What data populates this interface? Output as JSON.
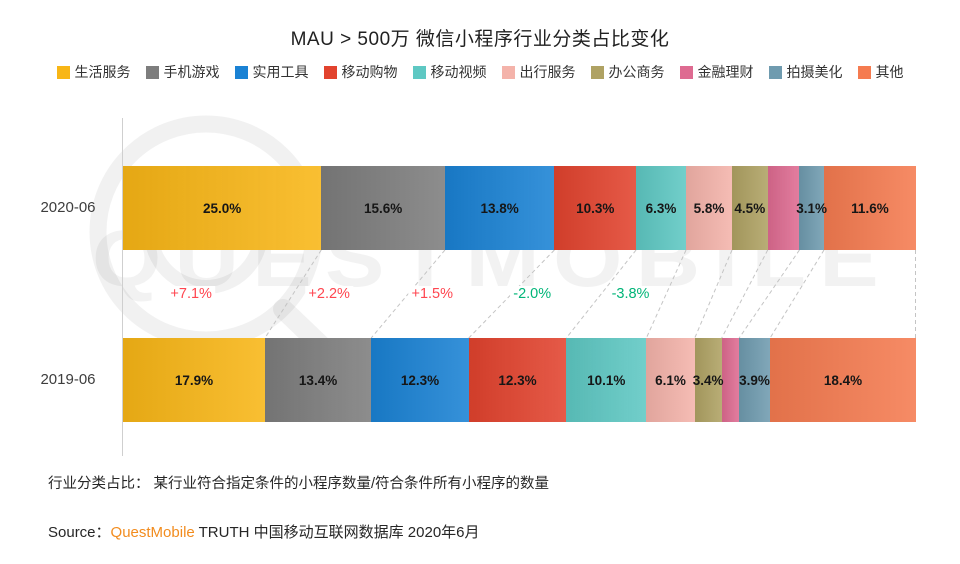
{
  "title": "MAU > 500万 微信小程序行业分类占比变化",
  "watermark": "QUESTMOBILE",
  "footnote": "行业分类占比： 某行业符合指定条件的小程序数量/符合条件所有小程序的数量",
  "source": {
    "prefix": "Source：",
    "brand": "QuestMobile",
    "rest": " TRUTH 中国移动互联网数据库 2020年6月"
  },
  "chart_data": {
    "type": "bar",
    "variant": "horizontal-stacked-100pct",
    "unit": "%",
    "xlim": [
      0,
      100
    ],
    "legend_position": "top",
    "categories": [
      "生活服务",
      "手机游戏",
      "实用工具",
      "移动购物",
      "移动视频",
      "出行服务",
      "办公商务",
      "金融理财",
      "拍摄美化",
      "其他"
    ],
    "colors": [
      "#F8B616",
      "#7D7D7D",
      "#1A82D4",
      "#E2432E",
      "#5EC8C3",
      "#F4B3AA",
      "#AFA263",
      "#DE6B91",
      "#6F9BAF",
      "#F57B50"
    ],
    "rows": [
      {
        "label": "2020-06",
        "values": [
          25.0,
          15.6,
          13.8,
          10.3,
          6.3,
          5.8,
          4.5,
          4.0,
          3.1,
          11.6
        ],
        "value_labels": [
          "25.0%",
          "15.6%",
          "13.8%",
          "10.3%",
          "6.3%",
          "5.8%",
          "4.5%",
          "",
          "3.1%",
          "11.6%"
        ]
      },
      {
        "label": "2019-06",
        "values": [
          17.9,
          13.4,
          12.3,
          12.3,
          10.1,
          6.1,
          3.4,
          2.2,
          3.9,
          18.4
        ],
        "value_labels": [
          "17.9%",
          "13.4%",
          "12.3%",
          "12.3%",
          "10.1%",
          "6.1%",
          "3.4%",
          "",
          "3.9%",
          "18.4%"
        ]
      }
    ],
    "changes": [
      {
        "category": "生活服务",
        "text": "+7.1%",
        "color": "#FF4650",
        "x_pct": 8.6
      },
      {
        "category": "手机游戏",
        "text": "+2.2%",
        "color": "#FF4650",
        "x_pct": 26.0
      },
      {
        "category": "实用工具",
        "text": "+1.5%",
        "color": "#FF4650",
        "x_pct": 39.0
      },
      {
        "category": "移动购物",
        "text": "-2.0%",
        "color": "#00B578",
        "x_pct": 51.6
      },
      {
        "category": "移动视频",
        "text": "-3.8%",
        "color": "#00B578",
        "x_pct": 64.0
      }
    ],
    "connector_style": {
      "color": "#c4c4c4",
      "dash": "4 3"
    }
  }
}
